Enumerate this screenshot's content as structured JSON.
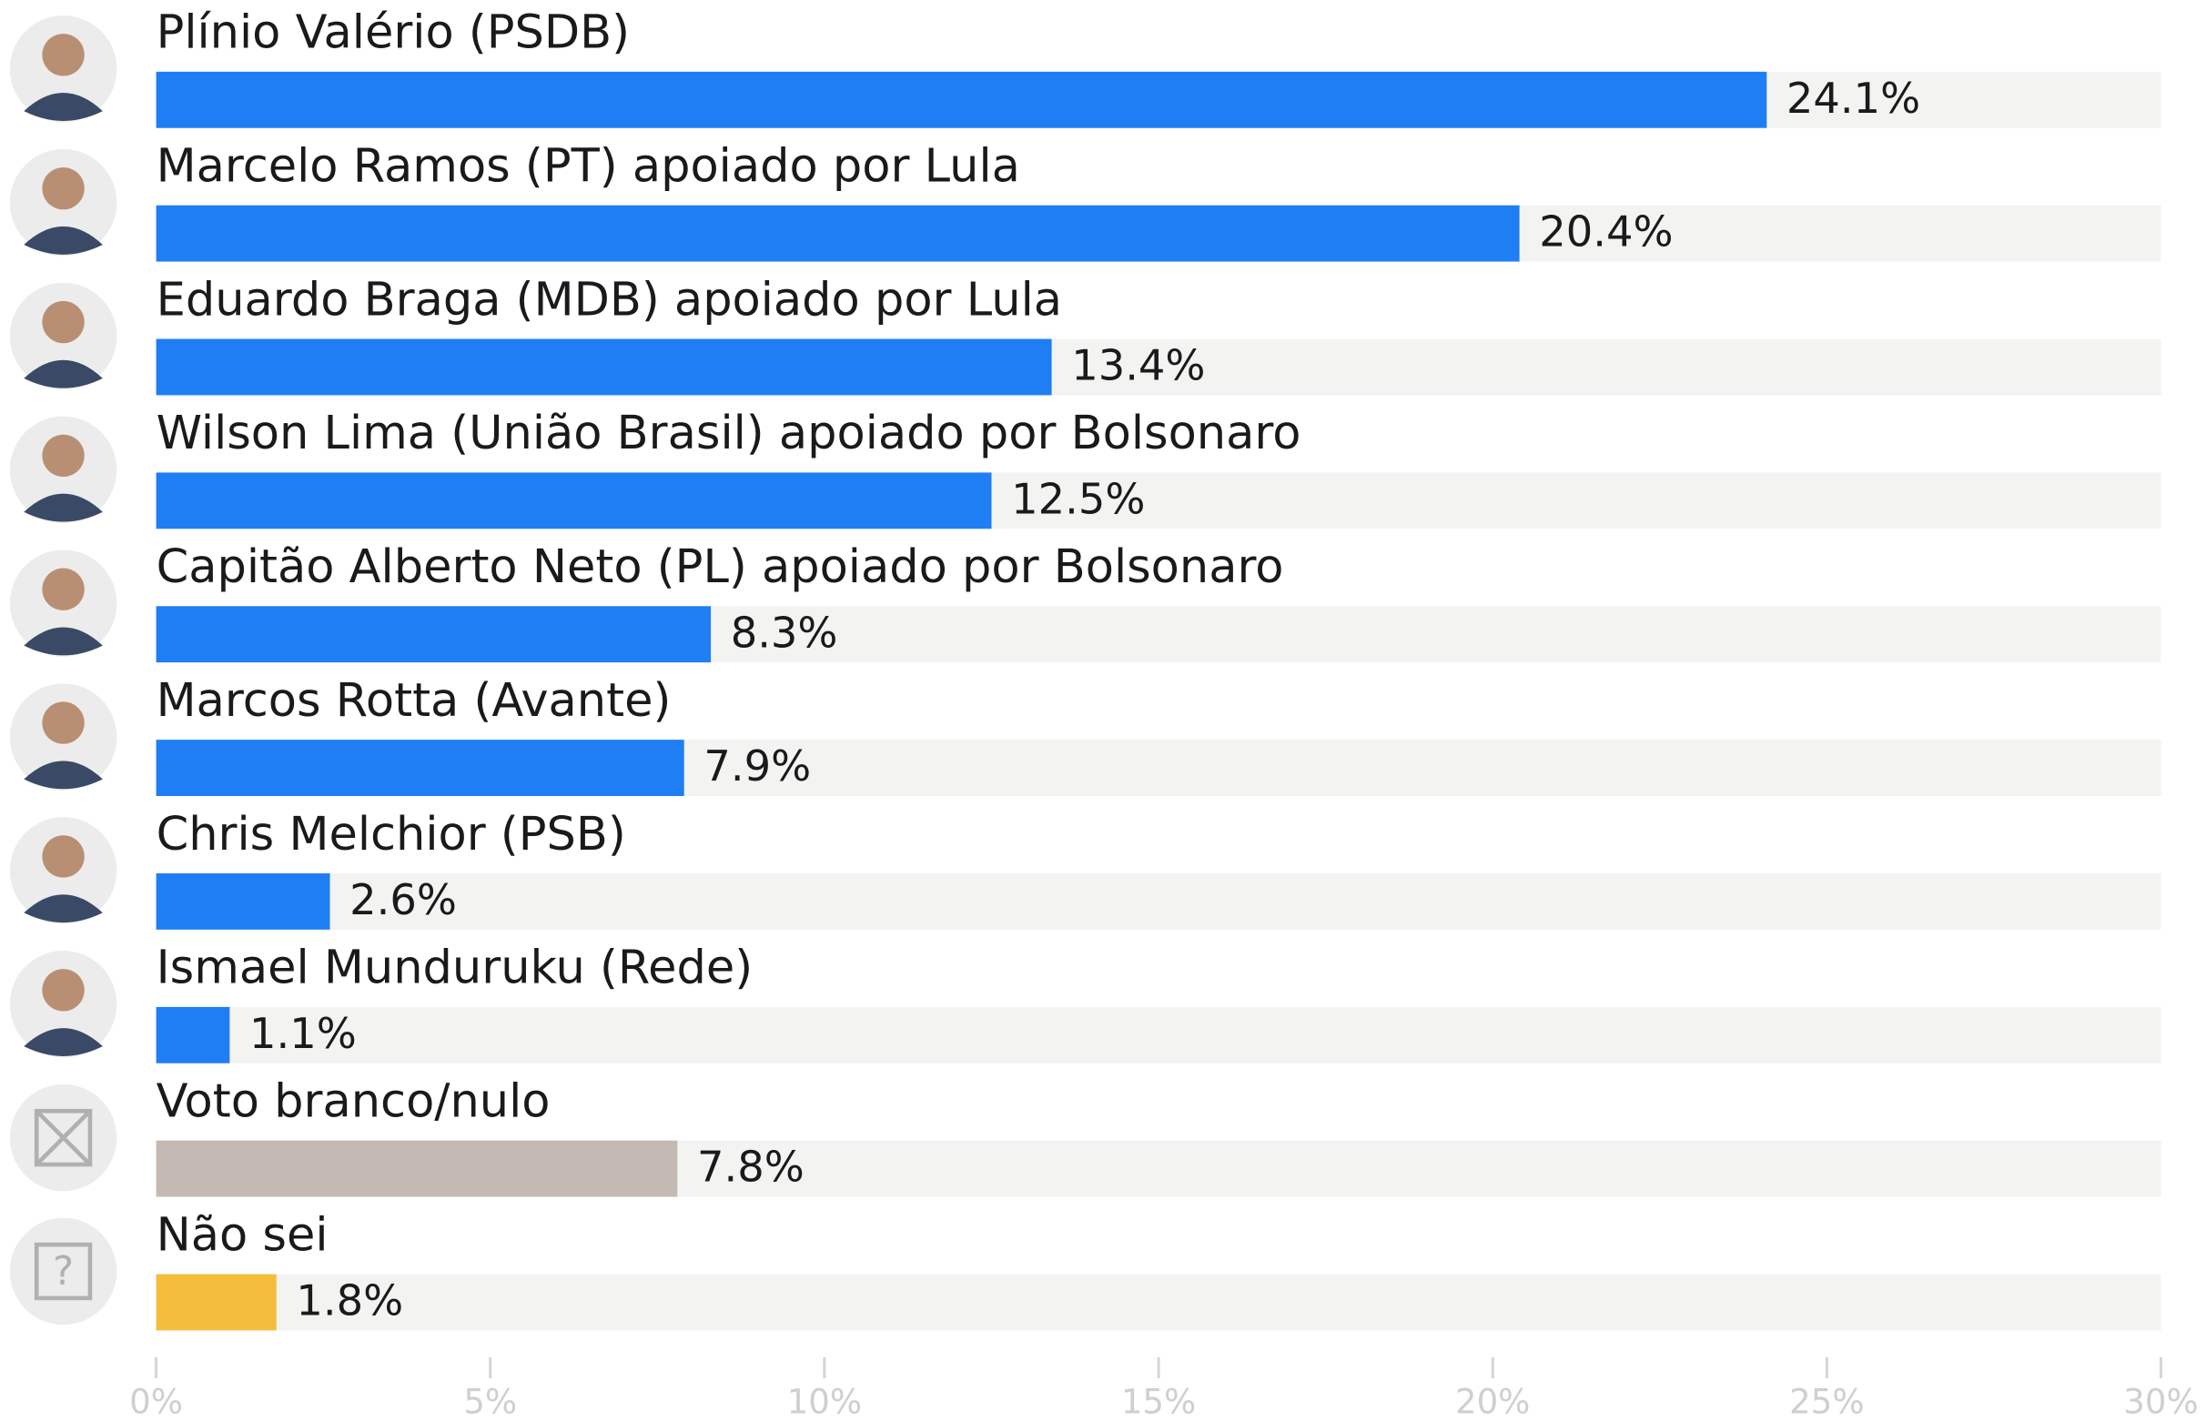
{
  "chart_data": {
    "type": "bar",
    "orientation": "horizontal",
    "categories": [
      "Plínio Valério (PSDB)",
      "Marcelo Ramos (PT) apoiado por Lula",
      "Eduardo Braga (MDB) apoiado por Lula",
      "Wilson Lima (União Brasil) apoiado por Bolsonaro",
      "Capitão Alberto Neto (PL) apoiado por Bolsonaro",
      "Marcos Rotta (Avante)",
      "Chris Melchior (PSB)",
      "Ismael Munduruku (Rede)",
      "Voto branco/nulo",
      "Não sei"
    ],
    "values": [
      24.1,
      20.4,
      13.4,
      12.5,
      8.3,
      7.9,
      2.6,
      1.1,
      7.8,
      1.8
    ],
    "value_labels": [
      "24.1%",
      "20.4%",
      "13.4%",
      "12.5%",
      "8.3%",
      "7.9%",
      "2.6%",
      "1.1%",
      "7.8%",
      "1.8%"
    ],
    "colors": [
      "#1f7ef4",
      "#1f7ef4",
      "#1f7ef4",
      "#1f7ef4",
      "#1f7ef4",
      "#1f7ef4",
      "#1f7ef4",
      "#1f7ef4",
      "#c5bab3",
      "#f4bd3c"
    ],
    "track_color": "#f3f3f2",
    "xlim": [
      0,
      30
    ],
    "xticks": [
      {
        "value": 0,
        "label": "0%"
      },
      {
        "value": 5,
        "label": "5%"
      },
      {
        "value": 10,
        "label": "10%"
      },
      {
        "value": 15,
        "label": "15%"
      },
      {
        "value": 20,
        "label": "20%"
      },
      {
        "value": 25,
        "label": "25%"
      },
      {
        "value": 30,
        "label": "30%"
      }
    ]
  }
}
